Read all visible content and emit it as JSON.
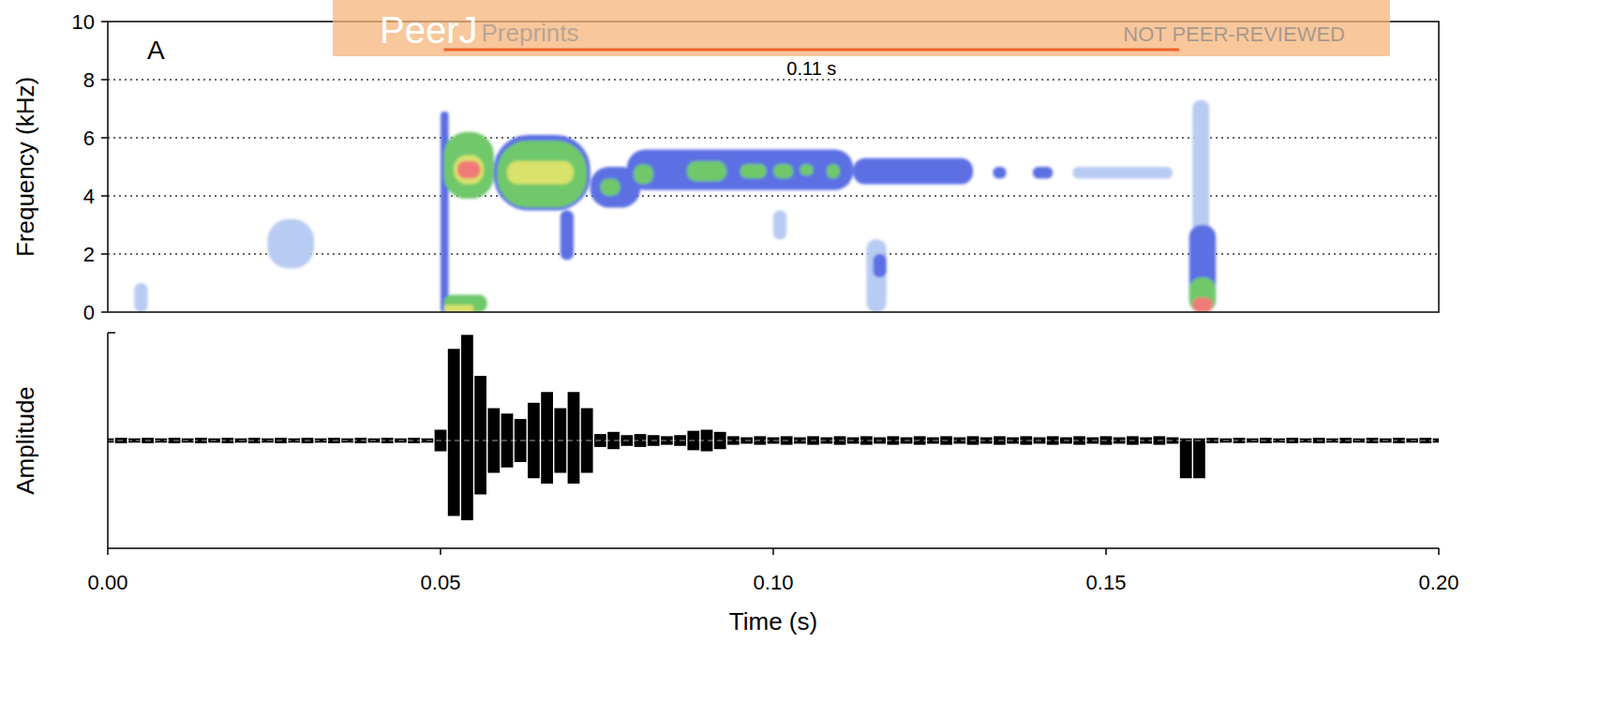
{
  "watermark": [
    "PeerJ",
    "Preprints",
    "NOT PEER-REVIEWED"
  ],
  "chart_data": [
    {
      "type": "heatmap",
      "panel_label": "A",
      "y_label": "Frequency (kHz)",
      "xlim": [
        0,
        0.2
      ],
      "ylim": [
        0,
        10
      ],
      "yticks": [
        0,
        2,
        4,
        6,
        8,
        10
      ],
      "grid": true,
      "tick_labels": "y",
      "colors": [
        "#b8cbf2",
        "#5c6fe4",
        "#6fc86a",
        "#d9e26a",
        "#f07a78"
      ],
      "annotations": [
        {
          "text": "0.11 s",
          "x": [
            0.0505,
            0.161
          ]
        }
      ],
      "cells": [
        [
          0.05,
          0.0512,
          0.0,
          6.9,
          2
        ],
        [
          0.058,
          0.0725,
          3.5,
          6.1,
          2
        ],
        [
          0.0725,
          0.08,
          3.6,
          5.0,
          2
        ],
        [
          0.078,
          0.112,
          4.2,
          5.6,
          2
        ],
        [
          0.112,
          0.13,
          4.4,
          5.3,
          2
        ],
        [
          0.133,
          0.135,
          4.6,
          5.0,
          2
        ],
        [
          0.139,
          0.142,
          4.6,
          5.0,
          2
        ],
        [
          0.145,
          0.16,
          4.6,
          5.0,
          1
        ],
        [
          0.024,
          0.031,
          1.5,
          3.2,
          1
        ],
        [
          0.004,
          0.006,
          0.0,
          1.0,
          1
        ],
        [
          0.068,
          0.07,
          1.8,
          3.5,
          2
        ],
        [
          0.1,
          0.102,
          2.5,
          3.5,
          1
        ],
        [
          0.114,
          0.117,
          0.0,
          2.5,
          1
        ],
        [
          0.115,
          0.117,
          1.2,
          2.0,
          2
        ],
        [
          0.163,
          0.1655,
          1.5,
          7.3,
          1
        ],
        [
          0.0505,
          0.058,
          3.9,
          6.2,
          3
        ],
        [
          0.0585,
          0.072,
          3.6,
          5.9,
          3
        ],
        [
          0.074,
          0.077,
          4.0,
          4.6,
          3
        ],
        [
          0.079,
          0.082,
          4.4,
          5.1,
          3
        ],
        [
          0.087,
          0.093,
          4.5,
          5.2,
          3
        ],
        [
          0.095,
          0.099,
          4.6,
          5.1,
          3
        ],
        [
          0.1,
          0.103,
          4.6,
          5.1,
          3
        ],
        [
          0.104,
          0.106,
          4.7,
          5.1,
          3
        ],
        [
          0.108,
          0.11,
          4.6,
          5.1,
          3
        ],
        [
          0.0505,
          0.057,
          0.0,
          0.6,
          3
        ],
        [
          0.1625,
          0.1665,
          0.0,
          3.0,
          2
        ],
        [
          0.1625,
          0.1665,
          0.0,
          1.2,
          3
        ],
        [
          0.052,
          0.0565,
          4.4,
          5.4,
          4
        ],
        [
          0.06,
          0.07,
          4.4,
          5.2,
          4
        ],
        [
          0.0505,
          0.055,
          0.0,
          0.25,
          4
        ],
        [
          0.0525,
          0.056,
          4.6,
          5.2,
          5
        ],
        [
          0.163,
          0.166,
          0.0,
          0.5,
          5
        ]
      ]
    },
    {
      "type": "waveform",
      "x_label": "Time (s)",
      "y_label": "Amplitude",
      "xlim": [
        0,
        0.2
      ],
      "ylim": [
        -1,
        1
      ],
      "xticks": [
        {
          "value": 0,
          "label": "0.00"
        },
        {
          "value": 0.05,
          "label": "0.05"
        },
        {
          "value": 0.1,
          "label": "0.10"
        },
        {
          "value": 0.15,
          "label": "0.15"
        },
        {
          "value": 0.2,
          "label": "0.20"
        }
      ],
      "yticks": [
        1
      ],
      "tick_labels": "x",
      "color": "#000000",
      "x": [
        0,
        0.002,
        0.004,
        0.006,
        0.008,
        0.01,
        0.012,
        0.014,
        0.016,
        0.018,
        0.02,
        0.022,
        0.024,
        0.026,
        0.028,
        0.03,
        0.032,
        0.034,
        0.036,
        0.038,
        0.04,
        0.042,
        0.044,
        0.046,
        0.048,
        0.05,
        0.052,
        0.054,
        0.056,
        0.058,
        0.06,
        0.062,
        0.064,
        0.066,
        0.068,
        0.07,
        0.072,
        0.074,
        0.076,
        0.078,
        0.08,
        0.082,
        0.084,
        0.086,
        0.088,
        0.09,
        0.092,
        0.094,
        0.096,
        0.098,
        0.1,
        0.102,
        0.104,
        0.106,
        0.108,
        0.11,
        0.112,
        0.114,
        0.116,
        0.118,
        0.12,
        0.122,
        0.124,
        0.126,
        0.128,
        0.13,
        0.132,
        0.134,
        0.136,
        0.138,
        0.14,
        0.142,
        0.144,
        0.146,
        0.148,
        0.15,
        0.152,
        0.154,
        0.156,
        0.158,
        0.16,
        0.162,
        0.164,
        0.166,
        0.168,
        0.17,
        0.172,
        0.174,
        0.176,
        0.178,
        0.18,
        0.182,
        0.184,
        0.186,
        0.188,
        0.19,
        0.192,
        0.194,
        0.196,
        0.198,
        0.2
      ],
      "series": [
        {
          "values": [
            0.02,
            0.025,
            0.02,
            0.025,
            0.02,
            0.025,
            0.02,
            0.025,
            0.02,
            0.025,
            0.02,
            0.025,
            0.02,
            0.025,
            0.02,
            0.025,
            0.02,
            0.025,
            0.02,
            0.025,
            0.02,
            0.025,
            0.02,
            0.025,
            0.02,
            0.1,
            0.85,
            0.98,
            0.6,
            0.3,
            0.25,
            0.2,
            0.35,
            0.45,
            0.3,
            0.45,
            0.3,
            0.06,
            0.08,
            0.05,
            0.06,
            0.05,
            0.04,
            0.05,
            0.09,
            0.1,
            0.08,
            0.04,
            0.03,
            0.04,
            0.03,
            0.04,
            0.03,
            0.04,
            0.03,
            0.04,
            0.03,
            0.04,
            0.03,
            0.04,
            0.03,
            0.04,
            0.03,
            0.04,
            0.03,
            0.04,
            0.03,
            0.04,
            0.03,
            0.04,
            0.03,
            0.04,
            0.03,
            0.04,
            0.03,
            0.04,
            0.03,
            0.04,
            0.03,
            0.04,
            0.03,
            0.02,
            0.02,
            0.025,
            0.02,
            0.025,
            0.02,
            0.025,
            0.02,
            0.025,
            0.02,
            0.025,
            0.02,
            0.025,
            0.02,
            0.025,
            0.02,
            0.025,
            0.02,
            0.025,
            0.02
          ]
        },
        {
          "values": [
            -0.02,
            -0.025,
            -0.02,
            -0.025,
            -0.02,
            -0.025,
            -0.02,
            -0.025,
            -0.02,
            -0.025,
            -0.02,
            -0.025,
            -0.02,
            -0.025,
            -0.02,
            -0.025,
            -0.02,
            -0.025,
            -0.02,
            -0.025,
            -0.02,
            -0.025,
            -0.02,
            -0.025,
            -0.02,
            -0.1,
            -0.7,
            -0.74,
            -0.5,
            -0.3,
            -0.25,
            -0.2,
            -0.35,
            -0.4,
            -0.3,
            -0.4,
            -0.3,
            -0.06,
            -0.08,
            -0.05,
            -0.06,
            -0.05,
            -0.04,
            -0.05,
            -0.09,
            -0.1,
            -0.08,
            -0.04,
            -0.03,
            -0.04,
            -0.03,
            -0.04,
            -0.03,
            -0.04,
            -0.03,
            -0.04,
            -0.03,
            -0.04,
            -0.03,
            -0.04,
            -0.03,
            -0.04,
            -0.03,
            -0.04,
            -0.03,
            -0.04,
            -0.03,
            -0.04,
            -0.03,
            -0.04,
            -0.03,
            -0.04,
            -0.03,
            -0.04,
            -0.03,
            -0.04,
            -0.03,
            -0.04,
            -0.03,
            -0.04,
            -0.03,
            -0.35,
            -0.35,
            -0.025,
            -0.02,
            -0.025,
            -0.02,
            -0.025,
            -0.02,
            -0.025,
            -0.02,
            -0.025,
            -0.02,
            -0.025,
            -0.02,
            -0.025,
            -0.02,
            -0.025,
            -0.02,
            -0.025,
            -0.02
          ]
        }
      ]
    }
  ]
}
